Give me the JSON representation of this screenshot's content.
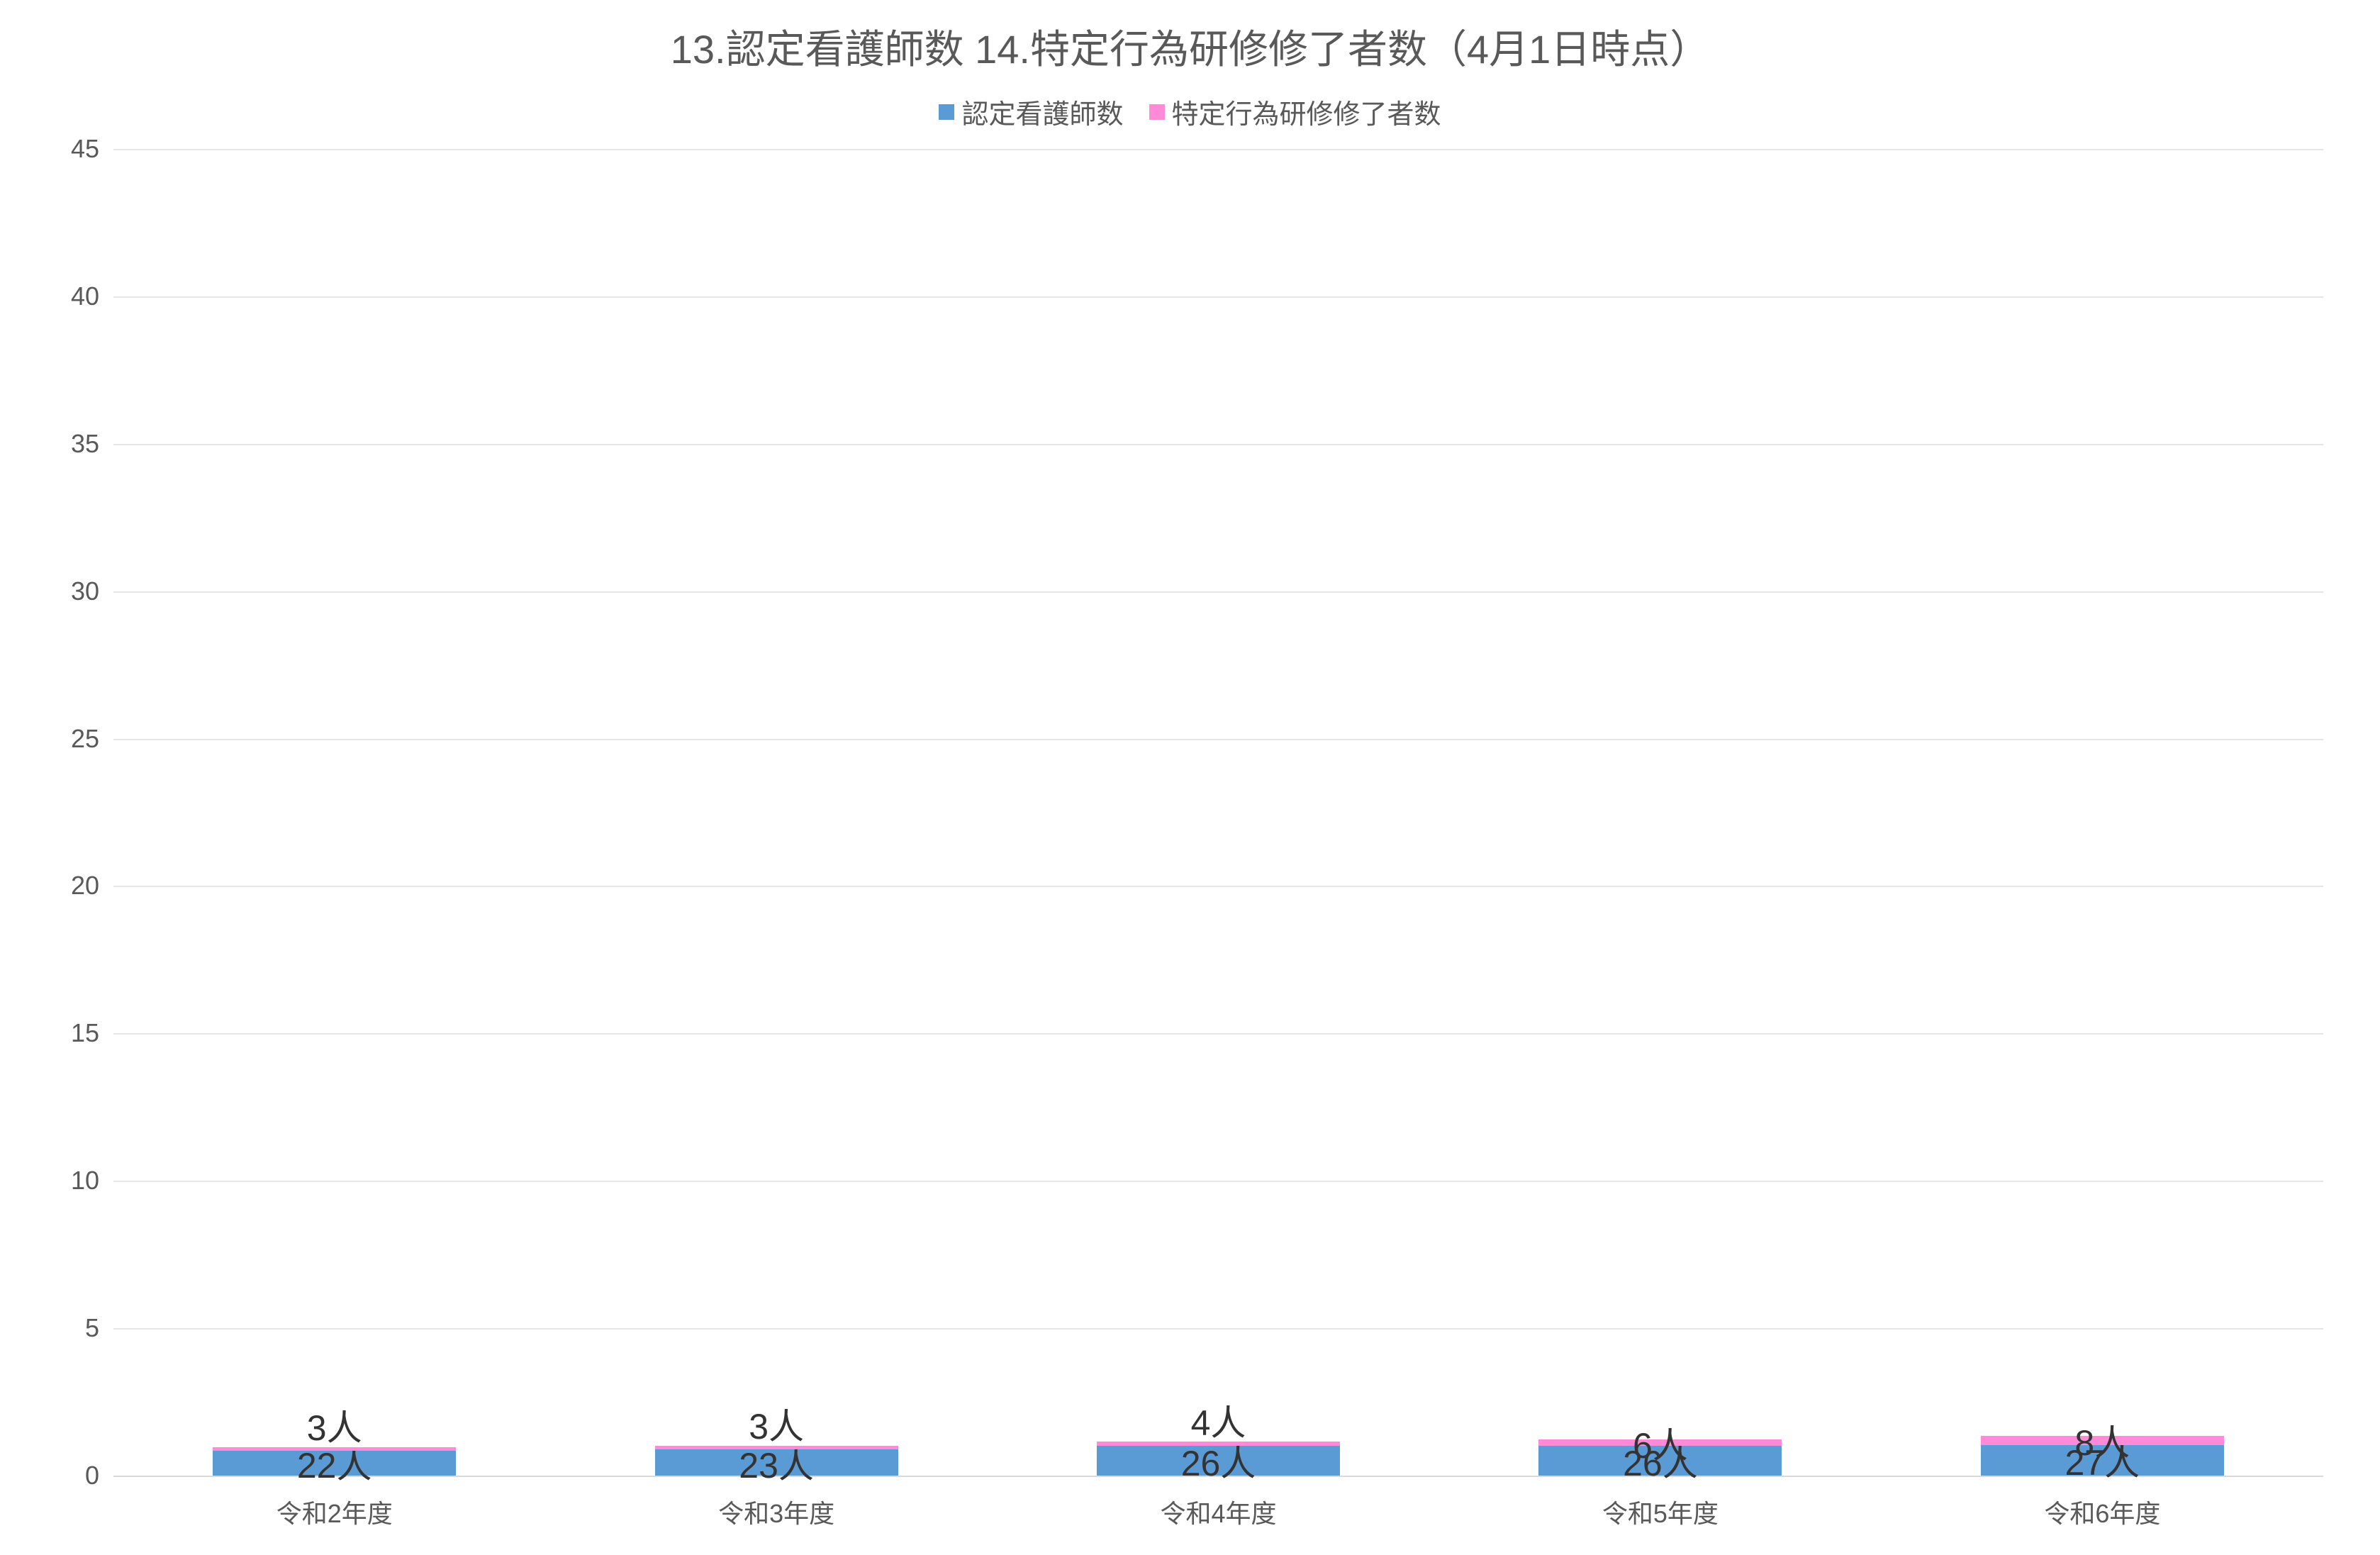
{
  "chart": {
    "type": "stacked-bar",
    "title": "13.認定看護師数  14.特定行為研修修了者数（4月1日時点）",
    "title_fontsize": 56,
    "title_color": "#595959",
    "legend": {
      "items": [
        {
          "label": "認定看護師数",
          "color": "#5b9bd5"
        },
        {
          "label": "特定行為研修修了者数",
          "color": "#ff8ad8"
        }
      ],
      "fontsize": 38,
      "color": "#595959"
    },
    "y": {
      "min": 0,
      "max": 45,
      "step": 5,
      "tick_fontsize": 36,
      "tick_color": "#595959"
    },
    "grid_color": "#e6e6e6",
    "axis_color": "#d9d9d9",
    "x": {
      "categories": [
        "令和2年度",
        "令和3年度",
        "令和4年度",
        "令和5年度",
        "令和6年度"
      ],
      "tick_fontsize": 36,
      "tick_color": "#595959"
    },
    "series": [
      {
        "name": "認定看護師数",
        "color": "#5b9bd5",
        "values": [
          22,
          23,
          26,
          26,
          27
        ],
        "labels": [
          "22人",
          "23人",
          "26人",
          "26人",
          "27人"
        ]
      },
      {
        "name": "特定行為研修修了者数",
        "color": "#ff8ad8",
        "values": [
          3,
          3,
          4,
          6,
          8
        ],
        "labels": [
          "3人",
          "3人",
          "4人",
          "6人",
          "8人"
        ]
      }
    ],
    "data_label_fontsize": 50,
    "data_label_color": "#333333",
    "bar_width_ratio": 0.55,
    "background_color": "#ffffff"
  }
}
